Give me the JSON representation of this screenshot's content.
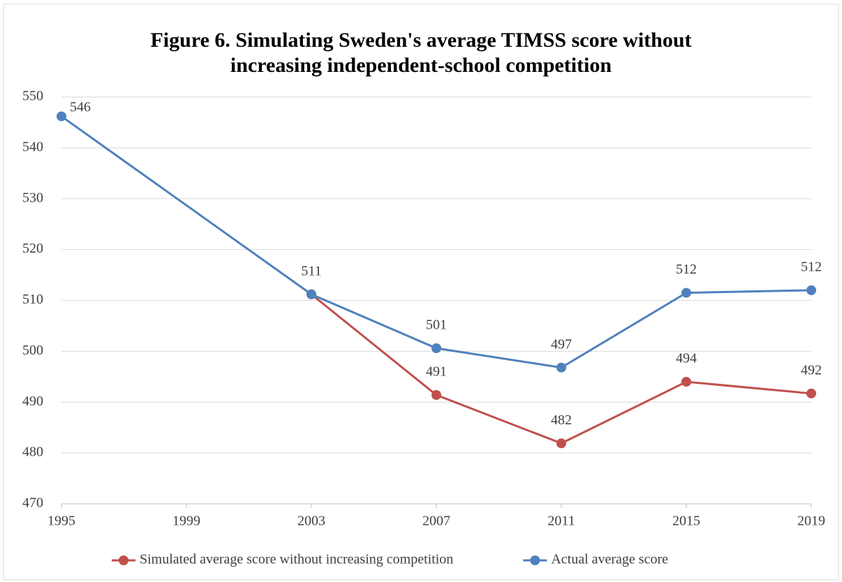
{
  "chart_data": {
    "type": "line",
    "title": [
      "Figure 6. Simulating Sweden's average TIMSS score without",
      "increasing independent-school competition"
    ],
    "x": [
      1995,
      2003,
      2007,
      2011,
      2015,
      2019
    ],
    "xlim": [
      1995,
      2019
    ],
    "xticks": [
      1995,
      1999,
      2003,
      2007,
      2011,
      2015,
      2019
    ],
    "ylim": [
      470,
      550
    ],
    "yticks": [
      470,
      480,
      490,
      500,
      510,
      520,
      530,
      540,
      550
    ],
    "grid": true,
    "legend": "bottom",
    "series": [
      {
        "name": "Simulated average score without increasing competition",
        "color": "#c0504d",
        "values": [
          null,
          511.2,
          491.4,
          481.9,
          494.0,
          491.7
        ],
        "value_labels": [
          null,
          null,
          "491",
          "482",
          "494",
          "492"
        ]
      },
      {
        "name": "Actual average score",
        "color": "#4f81bd",
        "values": [
          546.2,
          511.2,
          500.6,
          496.8,
          511.5,
          512.0
        ],
        "value_labels": [
          "546",
          "511",
          "501",
          "497",
          "512",
          "512"
        ]
      }
    ]
  }
}
